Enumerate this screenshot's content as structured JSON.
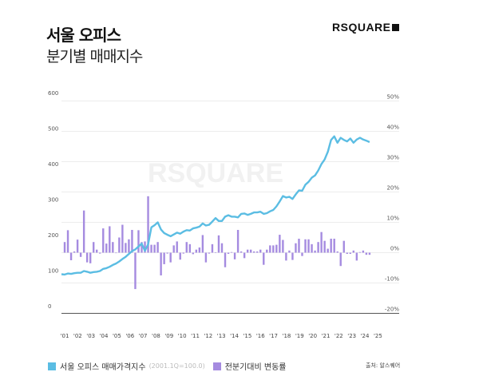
{
  "header": {
    "title": "서울 오피스",
    "subtitle": "분기별 매매지수",
    "logo": "RSQUARE"
  },
  "watermark": "RSQUARE",
  "legend": {
    "line_label": "서울 오피스 매매가격지수",
    "line_note": "(2001.1Q=100.0)",
    "bar_label": "전분기대비 변동률"
  },
  "source": "출처: 알스퀘어",
  "colors": {
    "line": "#5bbde3",
    "bar": "#a58be0"
  },
  "chart_data": {
    "type": "bar+line",
    "x_labels": [
      "'01",
      "'02",
      "'03",
      "'04",
      "'05",
      "'06",
      "'07",
      "'08",
      "'09",
      "'10",
      "'11",
      "'12",
      "'13",
      "'14",
      "'15",
      "'16",
      "'17",
      "'18",
      "'19",
      "'20",
      "'21",
      "'22",
      "'23",
      "'24",
      "'25"
    ],
    "left_axis": {
      "ticks": [
        "0",
        "100",
        "200",
        "300",
        "400",
        "500",
        "600"
      ],
      "range": [
        0,
        600
      ]
    },
    "right_axis": {
      "ticks": [
        "-20%",
        "-10%",
        "0%",
        "10%",
        "20%",
        "30%",
        "40%",
        "50%"
      ],
      "range": [
        -20,
        50
      ]
    },
    "series": [
      {
        "name": "서울 오피스 매매가격지수",
        "type": "line",
        "axis": "left",
        "start": "2001Q1",
        "values": [
          100,
          99,
          102,
          101,
          103,
          104,
          104,
          109,
          107,
          104,
          106,
          107,
          109,
          115,
          117,
          121,
          126,
          130,
          136,
          143,
          149,
          157,
          165,
          170,
          178,
          186,
          166,
          184,
          232,
          238,
          246,
          226,
          216,
          211,
          207,
          212,
          217,
          214,
          220,
          224,
          223,
          229,
          231,
          234,
          243,
          237,
          239,
          248,
          258,
          250,
          250,
          262,
          266,
          262,
          262,
          260,
          270,
          271,
          267,
          270,
          274,
          274,
          276,
          270,
          272,
          277,
          281,
          291,
          305,
          320,
          316,
          318,
          312,
          325,
          336,
          335,
          352,
          360,
          372,
          378,
          392,
          410,
          423,
          445,
          478,
          488,
          470,
          484,
          478,
          474,
          482,
          470,
          479,
          484,
          479,
          476,
          472
        ]
      },
      {
        "name": "전분기대비 변동률",
        "type": "bar",
        "axis": "right",
        "start": "2001Q2",
        "values": [
          3.5,
          7.4,
          -2.5,
          0.4,
          4.3,
          -1.4,
          13.9,
          -3.2,
          -3.5,
          3.5,
          1,
          -0.3,
          8,
          3,
          8.7,
          3.5,
          0,
          5,
          9.2,
          3.2,
          4.4,
          7.5,
          -12,
          7.4,
          3.5,
          3.7,
          18.6,
          2.6,
          2.6,
          3.5,
          -7.5,
          -3.8,
          -0.3,
          -3.2,
          2.4,
          3.7,
          -2.3,
          -0.3,
          3.5,
          2.8,
          -0.5,
          1,
          1.7,
          5.8,
          -3.2,
          -0.3,
          2.8,
          0.1,
          5.7,
          3.1,
          -4.8,
          -0.4,
          0.2,
          -2.2,
          7.5,
          0.4,
          -1.8,
          1,
          1,
          0.4,
          0.4,
          1,
          -4,
          1,
          2.4,
          2.4,
          2.6,
          5.9,
          4.2,
          -2.6,
          0.7,
          -2.4,
          3.1,
          4.6,
          -1.1,
          4.4,
          4.4,
          2.8,
          0.7,
          3.5,
          6.8,
          3.9,
          1.3,
          4.6,
          4.6,
          0.4,
          -4.4,
          3.9,
          -0.4,
          -0.4,
          0.7,
          -2.6,
          0.2,
          0.7,
          -0.7,
          -0.7
        ]
      }
    ],
    "grid": true
  }
}
